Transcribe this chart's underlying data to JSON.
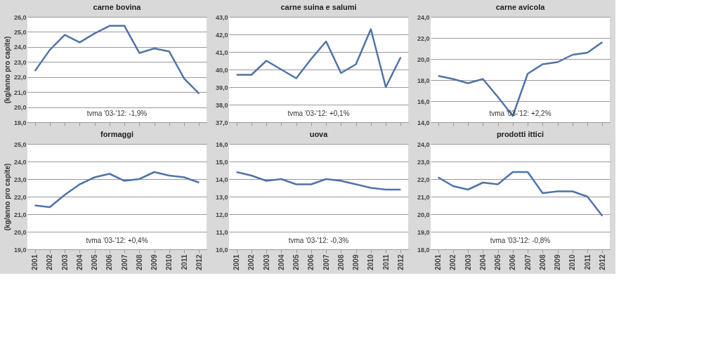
{
  "chart_data": [
    {
      "type": "line",
      "title": "carne bovina",
      "ylabel": "(kg/anno pro capite)",
      "categories": [
        "2001",
        "2002",
        "2003",
        "2004",
        "2005",
        "2006",
        "2007",
        "2008",
        "2009",
        "2010",
        "2011",
        "2012"
      ],
      "series": [
        {
          "color": "#4f73a8",
          "values": [
            22.4,
            23.8,
            24.8,
            24.3,
            24.9,
            25.4,
            25.4,
            23.6,
            23.9,
            23.7,
            21.9,
            20.9
          ]
        }
      ],
      "ylim": [
        19,
        26
      ],
      "yticks": [
        {
          "value": 19,
          "label": "19,0"
        },
        {
          "value": 20,
          "label": "20,0"
        },
        {
          "value": 21,
          "label": "21,0"
        },
        {
          "value": 22,
          "label": "22,0"
        },
        {
          "value": 23,
          "label": "23,0"
        },
        {
          "value": 24,
          "label": "24,0"
        },
        {
          "value": 25,
          "label": "25,0"
        },
        {
          "value": 26,
          "label": "26,0"
        }
      ],
      "grid": "y",
      "tick_labels": "y",
      "annotations": [
        "tvma '03-'12: -1,9%"
      ]
    },
    {
      "type": "line",
      "title": "carne suina e salumi",
      "categories": [
        "2001",
        "2002",
        "2003",
        "2004",
        "2005",
        "2006",
        "2007",
        "2008",
        "2009",
        "2010",
        "2011",
        "2012"
      ],
      "series": [
        {
          "color": "#4f73a8",
          "values": [
            39.7,
            39.7,
            40.5,
            40.0,
            39.5,
            40.6,
            41.6,
            39.8,
            40.3,
            42.3,
            39.0,
            40.7
          ]
        }
      ],
      "ylim": [
        37,
        43
      ],
      "yticks": [
        {
          "value": 37,
          "label": "37,0"
        },
        {
          "value": 38,
          "label": "38,0"
        },
        {
          "value": 39,
          "label": "39,0"
        },
        {
          "value": 40,
          "label": "40,0"
        },
        {
          "value": 41,
          "label": "41,0"
        },
        {
          "value": 42,
          "label": "42,0"
        },
        {
          "value": 43,
          "label": "43,0"
        }
      ],
      "grid": "y",
      "tick_labels": "y",
      "annotations": [
        "tvma '03-'12: +0,1%"
      ]
    },
    {
      "type": "line",
      "title": "carne avicola",
      "categories": [
        "2001",
        "2002",
        "2003",
        "2004",
        "2005",
        "2006",
        "2007",
        "2008",
        "2009",
        "2010",
        "2011",
        "2012"
      ],
      "series": [
        {
          "color": "#4f73a8",
          "values": [
            18.4,
            18.1,
            17.7,
            18.1,
            16.4,
            14.6,
            18.6,
            19.5,
            19.7,
            20.4,
            20.6,
            21.6
          ]
        }
      ],
      "ylim": [
        14,
        24
      ],
      "yticks": [
        {
          "value": 14,
          "label": "14,0"
        },
        {
          "value": 16,
          "label": "16,0"
        },
        {
          "value": 18,
          "label": "18,0"
        },
        {
          "value": 20,
          "label": "20,0"
        },
        {
          "value": 22,
          "label": "22,0"
        },
        {
          "value": 24,
          "label": "24,0"
        }
      ],
      "grid": "y",
      "tick_labels": "y",
      "annotations": [
        "tvma '03-'12: +2,2%"
      ]
    },
    {
      "type": "line",
      "title": "formaggi",
      "ylabel": "(kg/anno pro capite)",
      "categories": [
        "2001",
        "2002",
        "2003",
        "2004",
        "2005",
        "2006",
        "2007",
        "2008",
        "2009",
        "2010",
        "2011",
        "2012"
      ],
      "series": [
        {
          "color": "#4f73a8",
          "values": [
            21.5,
            21.4,
            22.1,
            22.7,
            23.1,
            23.3,
            22.9,
            23.0,
            23.4,
            23.2,
            23.1,
            22.8
          ]
        }
      ],
      "ylim": [
        19,
        25
      ],
      "yticks": [
        {
          "value": 19,
          "label": "19,0"
        },
        {
          "value": 20,
          "label": "20,0"
        },
        {
          "value": 21,
          "label": "21,0"
        },
        {
          "value": 22,
          "label": "22,0"
        },
        {
          "value": 23,
          "label": "23,0"
        },
        {
          "value": 24,
          "label": "24,0"
        },
        {
          "value": 25,
          "label": "25,0"
        }
      ],
      "grid": "y",
      "annotations": [
        "tvma '03-'12: +0,4%"
      ]
    },
    {
      "type": "line",
      "title": "uova",
      "categories": [
        "2001",
        "2002",
        "2003",
        "2004",
        "2005",
        "2006",
        "2007",
        "2008",
        "2009",
        "2010",
        "2011",
        "2012"
      ],
      "series": [
        {
          "color": "#4f73a8",
          "values": [
            14.4,
            14.2,
            13.9,
            14.0,
            13.7,
            13.7,
            14.0,
            13.9,
            13.7,
            13.5,
            13.4,
            13.4
          ]
        }
      ],
      "ylim": [
        10,
        16
      ],
      "yticks": [
        {
          "value": 10,
          "label": "10,0"
        },
        {
          "value": 11,
          "label": "11,0"
        },
        {
          "value": 12,
          "label": "12,0"
        },
        {
          "value": 13,
          "label": "13,0"
        },
        {
          "value": 14,
          "label": "14,0"
        },
        {
          "value": 15,
          "label": "15,0"
        },
        {
          "value": 16,
          "label": "16,0"
        }
      ],
      "grid": "y",
      "annotations": [
        "tvma '03-'12: -0,3%"
      ]
    },
    {
      "type": "line",
      "title": "prodotti ittici",
      "categories": [
        "2001",
        "2002",
        "2003",
        "2004",
        "2005",
        "2006",
        "2007",
        "2008",
        "2009",
        "2010",
        "2011",
        "2012"
      ],
      "series": [
        {
          "color": "#4f73a8",
          "values": [
            22.1,
            21.6,
            21.4,
            21.8,
            21.7,
            22.4,
            22.4,
            21.2,
            21.3,
            21.3,
            21.0,
            19.9
          ]
        }
      ],
      "ylim": [
        18,
        24
      ],
      "yticks": [
        {
          "value": 18,
          "label": "18,0"
        },
        {
          "value": 19,
          "label": "19,0"
        },
        {
          "value": 20,
          "label": "20,0"
        },
        {
          "value": 21,
          "label": "21,0"
        },
        {
          "value": 22,
          "label": "22,0"
        },
        {
          "value": 23,
          "label": "23,0"
        },
        {
          "value": 24,
          "label": "24,0"
        }
      ],
      "grid": "y",
      "annotations": [
        "tvma '03-'12: -0,8%"
      ]
    }
  ]
}
